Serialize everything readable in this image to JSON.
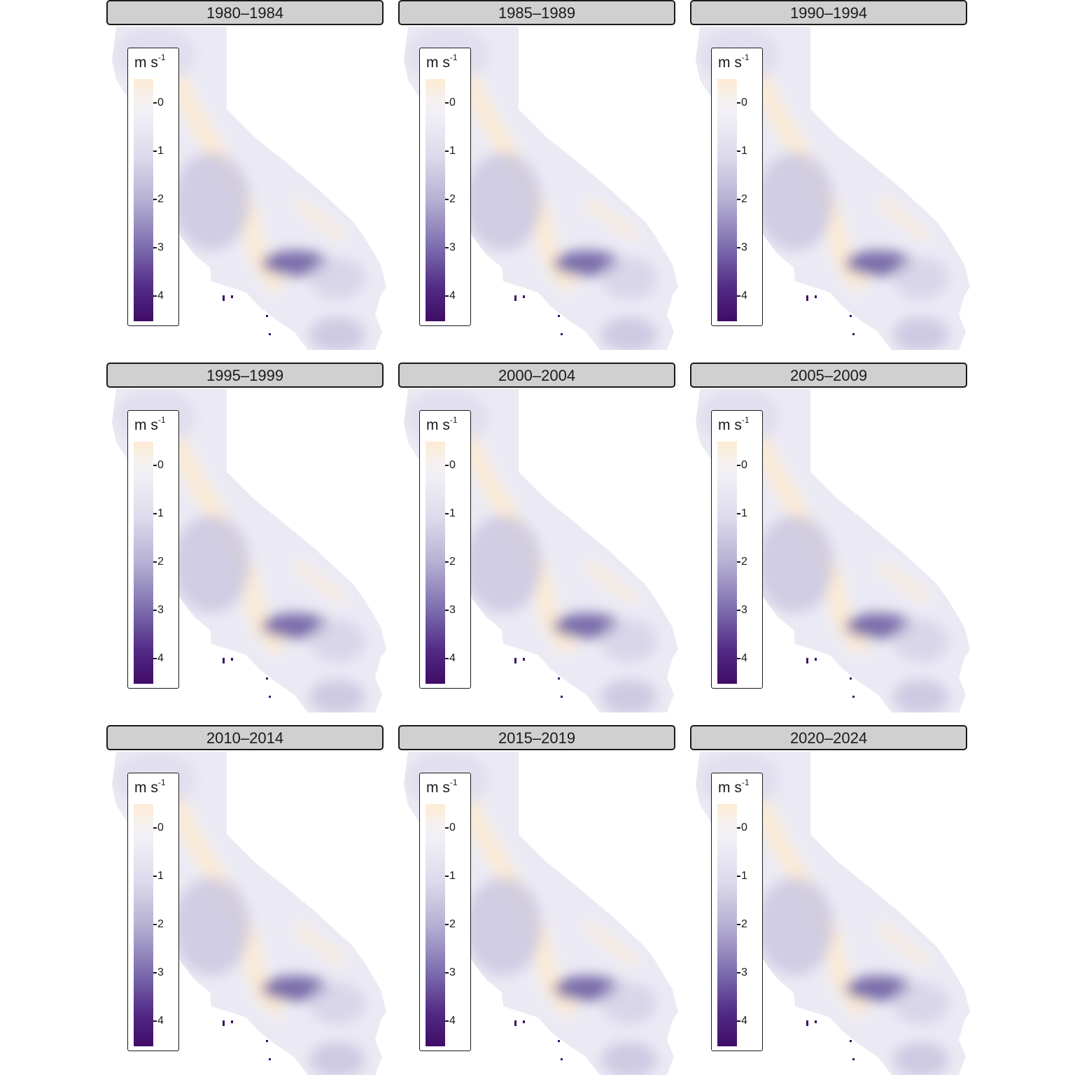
{
  "legend": {
    "unit_base": "m s",
    "unit_exp": "-1",
    "ticks": [
      "0",
      "1",
      "2",
      "3",
      "4"
    ]
  },
  "colors": {
    "strip_bg": "#d0d0d0",
    "high": "#fdebd3",
    "mid": "#f1f0f7",
    "low": "#3f0c66"
  },
  "panels": [
    {
      "label": "1980–1984"
    },
    {
      "label": "1985–1989"
    },
    {
      "label": "1990–1994"
    },
    {
      "label": "1995–1999"
    },
    {
      "label": "2000–2004"
    },
    {
      "label": "2005–2009"
    },
    {
      "label": "2010–2014"
    },
    {
      "label": "2015–2019"
    },
    {
      "label": "2020–2024"
    }
  ]
}
